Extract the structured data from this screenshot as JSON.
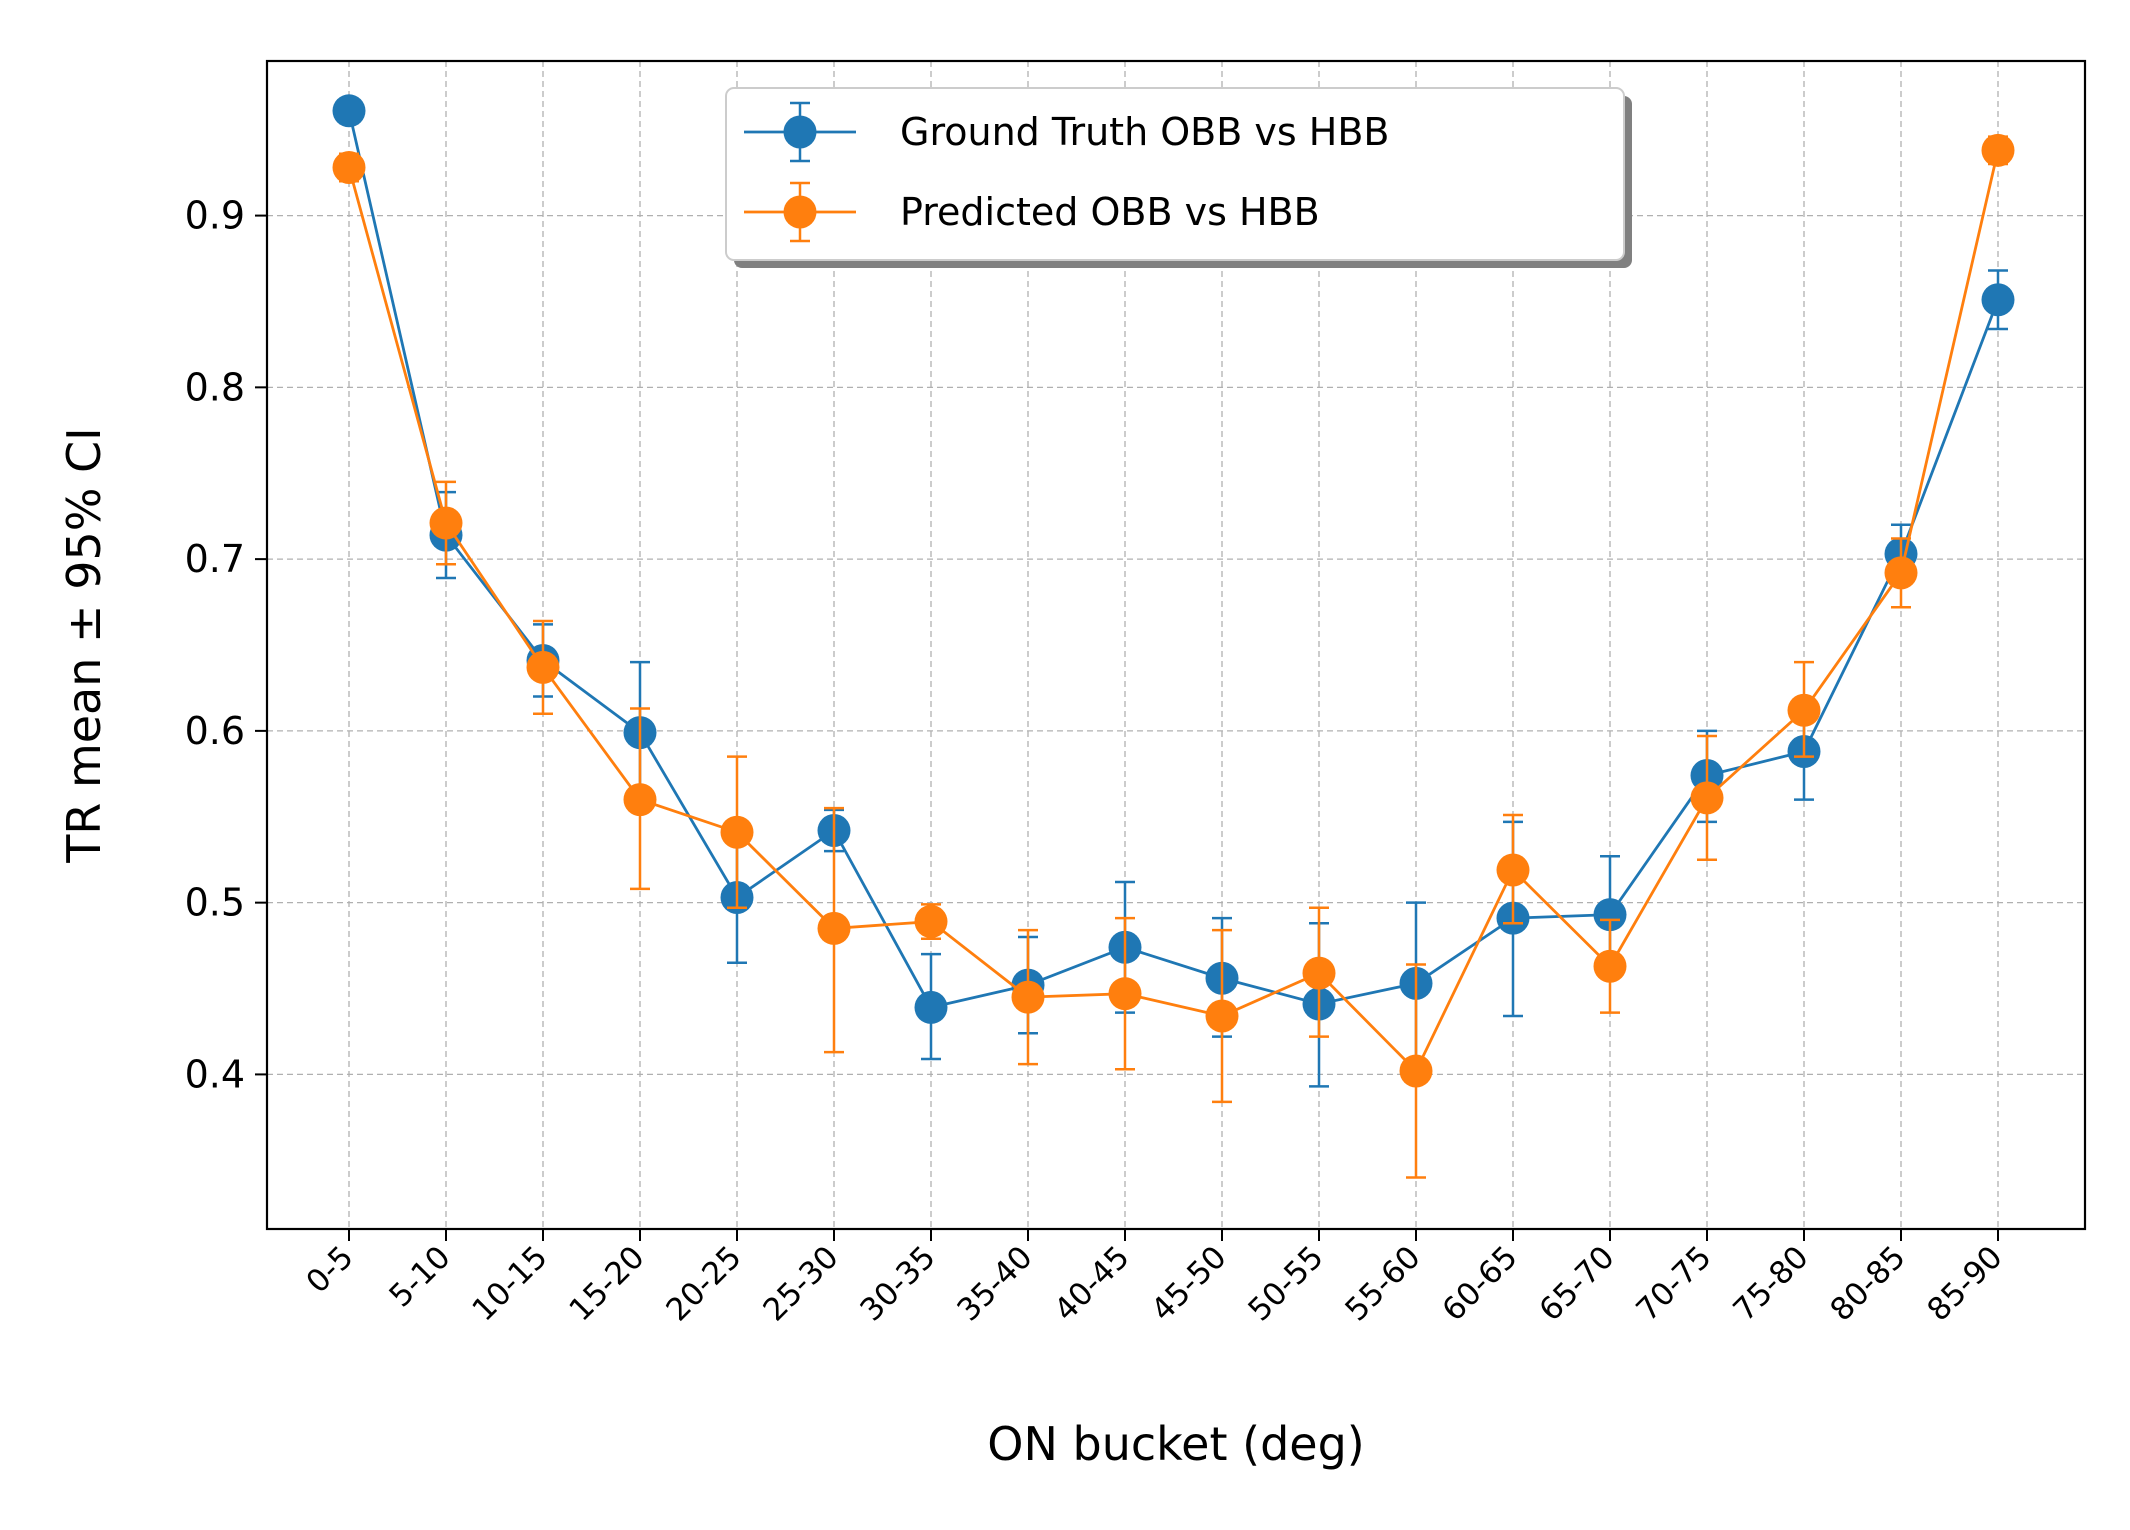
{
  "chart_data": {
    "type": "line",
    "title": "",
    "xlabel": "ON bucket (deg)",
    "ylabel": "TR mean ± 95% CI",
    "ylim": [
      0.31,
      0.99
    ],
    "yticks": [
      0.4,
      0.5,
      0.6,
      0.7,
      0.8,
      0.9
    ],
    "grid": true,
    "legend_position": "upper-center",
    "categories": [
      "0-5",
      "5-10",
      "10-15",
      "15-20",
      "20-25",
      "25-30",
      "30-35",
      "35-40",
      "40-45",
      "45-50",
      "50-55",
      "55-60",
      "60-65",
      "65-70",
      "70-75",
      "75-80",
      "80-85",
      "85-90"
    ],
    "series": [
      {
        "name": "Ground Truth OBB vs HBB",
        "color": "#1f77b4",
        "values": [
          0.961,
          0.714,
          0.641,
          0.599,
          0.503,
          0.542,
          0.439,
          0.452,
          0.474,
          0.456,
          0.441,
          0.453,
          0.491,
          0.493,
          0.574,
          0.588,
          0.703,
          0.851
        ],
        "ci_low": [
          0.954,
          0.689,
          0.62,
          0.559,
          0.465,
          0.53,
          0.409,
          0.424,
          0.436,
          0.422,
          0.393,
          0.404,
          0.434,
          0.458,
          0.547,
          0.56,
          0.686,
          0.834
        ],
        "ci_high": [
          0.968,
          0.739,
          0.662,
          0.64,
          0.54,
          0.554,
          0.47,
          0.48,
          0.512,
          0.491,
          0.488,
          0.5,
          0.547,
          0.527,
          0.6,
          0.616,
          0.72,
          0.868
        ]
      },
      {
        "name": "Predicted OBB vs HBB",
        "color": "#ff7f0e",
        "values": [
          0.928,
          0.721,
          0.637,
          0.56,
          0.541,
          0.485,
          0.489,
          0.445,
          0.447,
          0.434,
          0.459,
          0.402,
          0.519,
          0.463,
          0.561,
          0.612,
          0.692,
          0.938
        ],
        "ci_low": [
          0.92,
          0.697,
          0.61,
          0.508,
          0.497,
          0.413,
          0.479,
          0.406,
          0.403,
          0.384,
          0.422,
          0.34,
          0.488,
          0.436,
          0.525,
          0.585,
          0.672,
          0.93
        ],
        "ci_high": [
          0.936,
          0.745,
          0.664,
          0.613,
          0.585,
          0.555,
          0.499,
          0.484,
          0.491,
          0.484,
          0.497,
          0.464,
          0.551,
          0.49,
          0.597,
          0.64,
          0.712,
          0.946
        ]
      }
    ]
  }
}
